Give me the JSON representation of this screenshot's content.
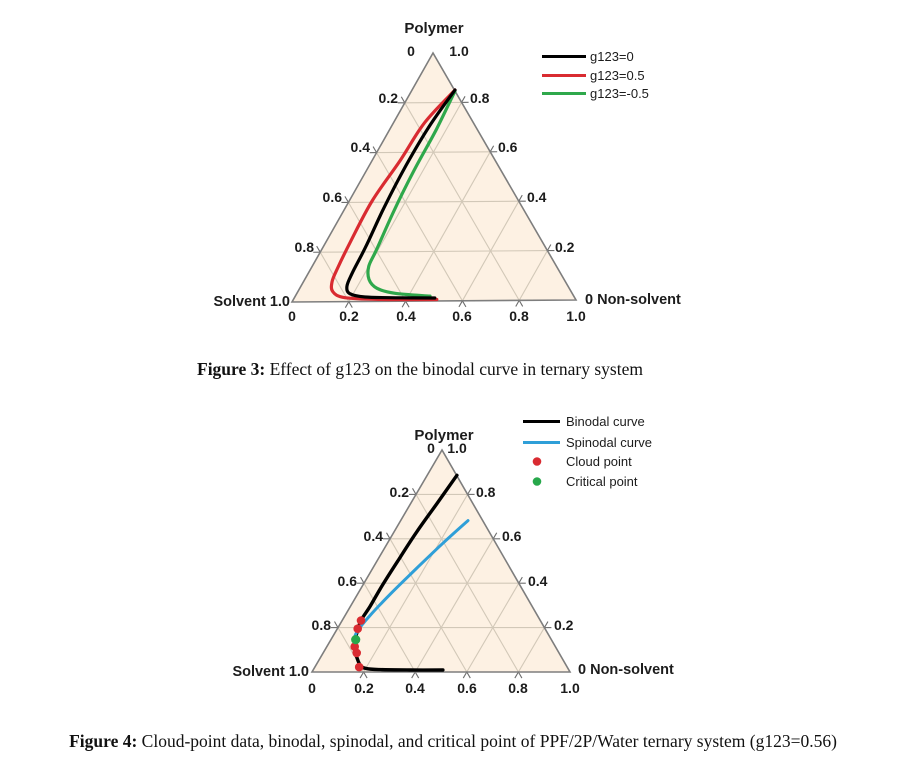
{
  "page": {
    "background": "#ffffff"
  },
  "style": {
    "triangle_fill": "#fdf1e3",
    "grid_color": "#d2c8b8",
    "tick_color": "#6d6d6d",
    "edge_color": "#7e7e7e",
    "label_color": "#1c1c1c"
  },
  "figure3": {
    "apex_title": "Polymer",
    "apex_tick_left": "0",
    "apex_tick_right": "1.0",
    "corner_left": "Solvent 1.0",
    "corner_right": "0 Non-solvent",
    "left_ticks": [
      "0.2",
      "0.4",
      "0.6",
      "0.8"
    ],
    "right_ticks": [
      "0.8",
      "0.6",
      "0.4",
      "0.2"
    ],
    "bottom_ticks": [
      "0",
      "0.2",
      "0.4",
      "0.6",
      "0.8",
      "1.0"
    ],
    "caption_label": "Figure 3:",
    "caption_text": " Effect of g123 on the binodal curve in ternary system"
  },
  "figure4": {
    "apex_title": "Polymer",
    "apex_tick_left": "0",
    "apex_tick_right": "1.0",
    "corner_left": "Solvent 1.0",
    "corner_right": "0 Non-solvent",
    "left_ticks": [
      "0.2",
      "0.4",
      "0.6",
      "0.8"
    ],
    "right_ticks": [
      "0.8",
      "0.6",
      "0.4",
      "0.2"
    ],
    "bottom_ticks": [
      "0",
      "0.2",
      "0.4",
      "0.6",
      "0.8",
      "1.0"
    ],
    "caption_label": "Figure 4:",
    "caption_text": " Cloud-point data, binodal, spinodal, and critical point of PPF/2P/Water ternary system (g123=0.56)"
  },
  "chart_data": [
    {
      "type": "line",
      "diagram": "ternary",
      "title": "Effect of g123 on the binodal curve in ternary system",
      "corners": {
        "top": "Polymer",
        "bottom_left": "Solvent",
        "bottom_right": "Non-solvent"
      },
      "axis_range": [
        0,
        1.0
      ],
      "tick_interval": 0.2,
      "point_format": "[non_solvent, polymer] fractions; solvent = 1 - non_solvent - polymer",
      "legend_position": "top-right",
      "series": [
        {
          "name": "g123=0",
          "color": "#000000",
          "points": [
            [
              0.152,
              0.85
            ],
            [
              0.134,
              0.708
            ],
            [
              0.13,
              0.547
            ],
            [
              0.136,
              0.385
            ],
            [
              0.15,
              0.223
            ],
            [
              0.155,
              0.113
            ],
            [
              0.163,
              0.061
            ],
            [
              0.188,
              0.032
            ],
            [
              0.248,
              0.018
            ],
            [
              0.373,
              0.014
            ],
            [
              0.497,
              0.012
            ]
          ]
        },
        {
          "name": "g123=0.5",
          "color": "#d92b31",
          "points": [
            [
              0.152,
              0.85
            ],
            [
              0.11,
              0.721
            ],
            [
              0.099,
              0.567
            ],
            [
              0.081,
              0.405
            ],
            [
              0.086,
              0.243
            ],
            [
              0.093,
              0.138
            ],
            [
              0.101,
              0.081
            ],
            [
              0.124,
              0.04
            ],
            [
              0.178,
              0.016
            ],
            [
              0.306,
              0.008
            ],
            [
              0.507,
              0.006
            ]
          ]
        },
        {
          "name": "g123=-0.5",
          "color": "#2fa84b",
          "points": [
            [
              0.154,
              0.846
            ],
            [
              0.165,
              0.688
            ],
            [
              0.168,
              0.526
            ],
            [
              0.178,
              0.364
            ],
            [
              0.194,
              0.211
            ],
            [
              0.2,
              0.142
            ],
            [
              0.227,
              0.089
            ],
            [
              0.273,
              0.053
            ],
            [
              0.347,
              0.032
            ],
            [
              0.476,
              0.02
            ]
          ]
        }
      ]
    },
    {
      "type": "line+scatter",
      "diagram": "ternary",
      "title": "Cloud-point data, binodal, spinodal, and critical point of PPF/2P/Water ternary system (g123=0.56)",
      "corners": {
        "top": "Polymer",
        "bottom_left": "Solvent",
        "bottom_right": "Non-solvent"
      },
      "axis_range": [
        0,
        1.0
      ],
      "tick_interval": 0.2,
      "point_format": "[non_solvent, polymer] fractions; solvent = 1 - non_solvent - polymer",
      "legend_position": "top-right",
      "series": [
        {
          "name": "Binodal curve",
          "color": "#000000",
          "points": [
            [
              0.115,
              0.886
            ],
            [
              0.102,
              0.759
            ],
            [
              0.088,
              0.632
            ],
            [
              0.081,
              0.509
            ],
            [
              0.076,
              0.395
            ],
            [
              0.076,
              0.295
            ],
            [
              0.073,
              0.232
            ],
            [
              0.085,
              0.177
            ],
            [
              0.101,
              0.123
            ],
            [
              0.132,
              0.077
            ],
            [
              0.17,
              0.032
            ],
            [
              0.201,
              0.016
            ],
            [
              0.258,
              0.011
            ],
            [
              0.375,
              0.009
            ],
            [
              0.503,
              0.009
            ]
          ]
        },
        {
          "name": "Spinodal curve",
          "color": "#2f9fd8",
          "points": [
            [
              0.261,
              0.682
            ],
            [
              0.214,
              0.578
            ],
            [
              0.17,
              0.466
            ],
            [
              0.128,
              0.355
            ],
            [
              0.096,
              0.252
            ],
            [
              0.083,
              0.186
            ],
            [
              0.087,
              0.15
            ]
          ]
        }
      ],
      "scatter": [
        {
          "name": "Cloud point",
          "color": "#d92b31",
          "radius": 4.3,
          "points": [
            [
              0.073,
              0.232
            ],
            [
              0.079,
              0.195
            ],
            [
              0.108,
              0.114
            ],
            [
              0.13,
              0.086
            ],
            [
              0.172,
              0.022
            ]
          ]
        },
        {
          "name": "Critical point",
          "color": "#27a84b",
          "radius": 4.6,
          "points": [
            [
              0.096,
              0.146
            ]
          ]
        }
      ]
    }
  ]
}
